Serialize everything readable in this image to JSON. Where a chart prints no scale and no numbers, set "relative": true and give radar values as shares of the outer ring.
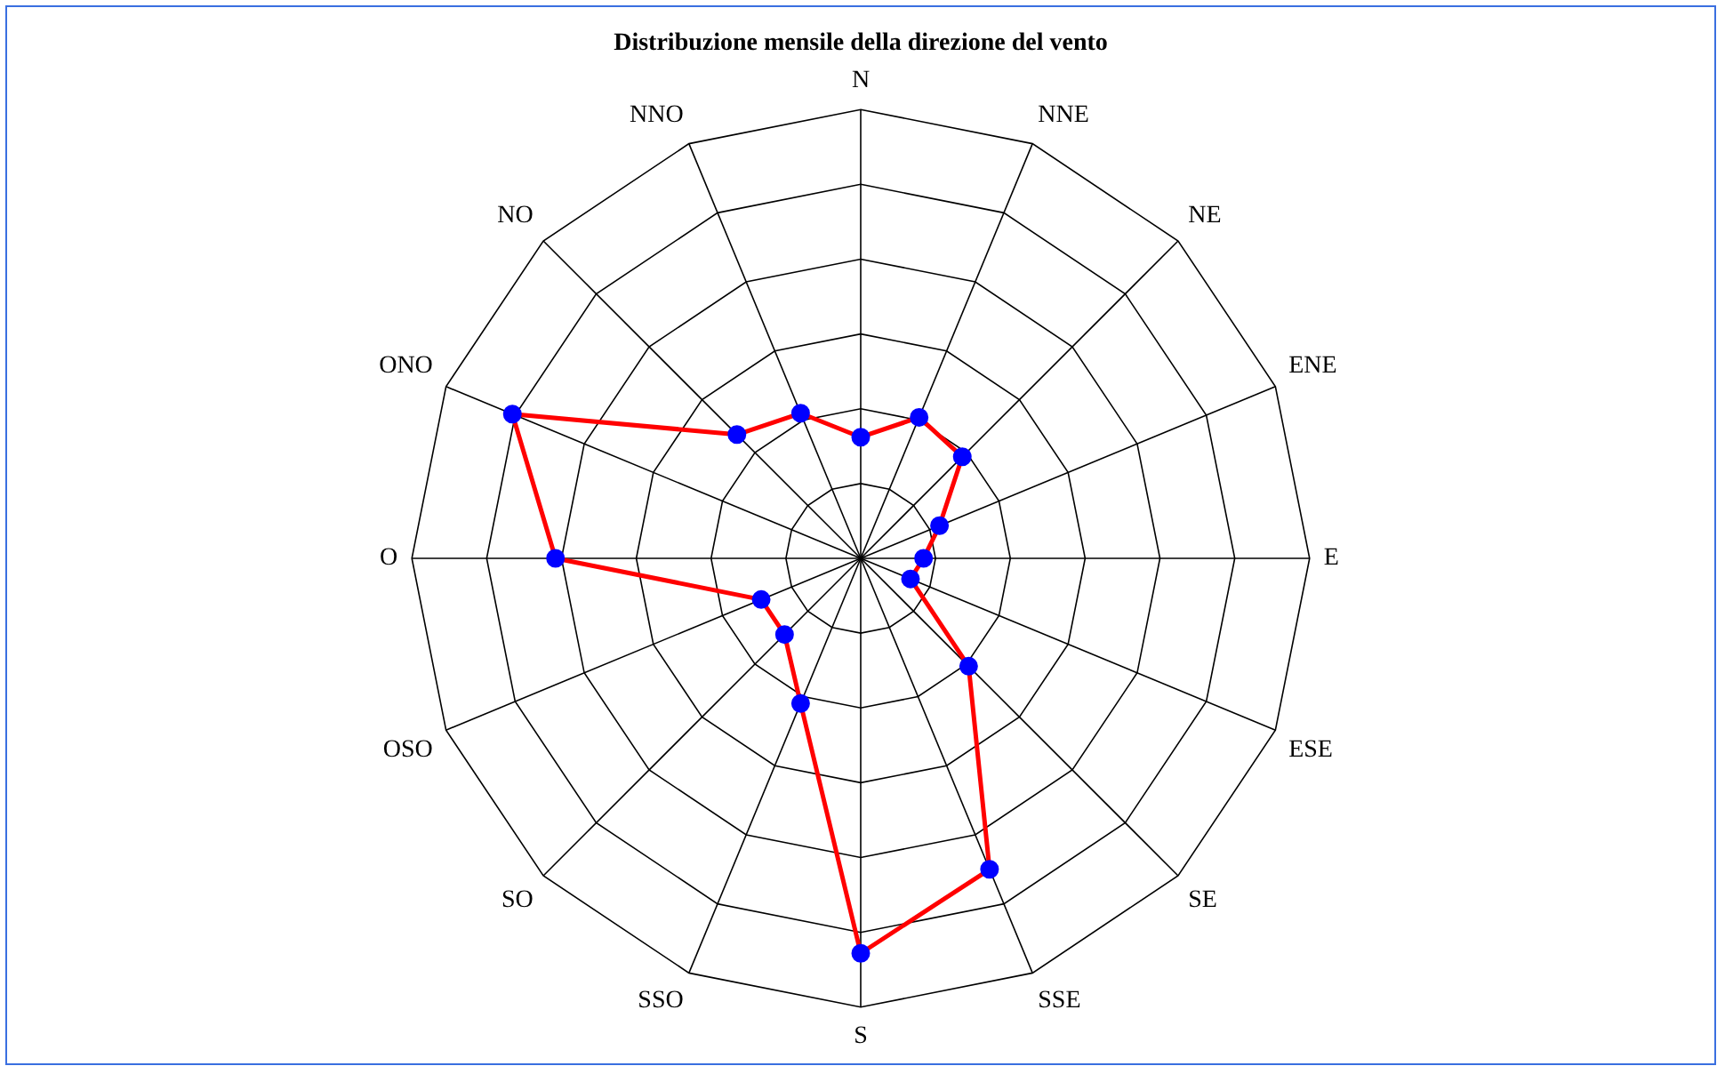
{
  "chart_data": {
    "type": "radar",
    "title": "Distribuzione mensile della direzione del vento",
    "categories": [
      "N",
      "NNE",
      "NE",
      "ENE",
      "E",
      "ESE",
      "SE",
      "SSE",
      "S",
      "SSO",
      "SO",
      "OSO",
      "O",
      "ONO",
      "NO",
      "NNO"
    ],
    "series": [
      {
        "color": "#ff0000",
        "values": [
          0.27,
          0.34,
          0.32,
          0.19,
          0.14,
          0.12,
          0.34,
          0.75,
          0.88,
          0.35,
          0.24,
          0.24,
          0.68,
          0.84,
          0.39,
          0.35
        ]
      }
    ],
    "relative": true,
    "grid": true,
    "marker": "circle",
    "line_style": "solid",
    "legend": false
  }
}
